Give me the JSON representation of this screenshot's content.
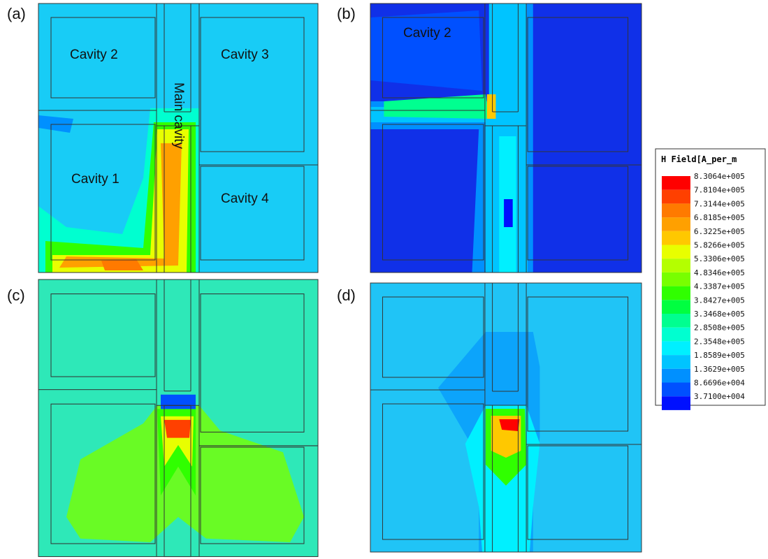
{
  "panels": [
    {
      "label": "(a)",
      "texts": [
        "Cavity 2",
        "Cavity 3",
        "Main cavity",
        "Cavity 1",
        "Cavity 4"
      ]
    },
    {
      "label": "(b)",
      "texts": [
        "Cavity 2"
      ]
    },
    {
      "label": "(c)",
      "texts": []
    },
    {
      "label": "(d)",
      "texts": []
    }
  ],
  "legend": {
    "title": "H Field[A_per_m",
    "entries": [
      {
        "label": "8.3064e+005",
        "color": "#ff0000"
      },
      {
        "label": "7.8104e+005",
        "color": "#ff4000"
      },
      {
        "label": "7.3144e+005",
        "color": "#ff7a00"
      },
      {
        "label": "6.8185e+005",
        "color": "#ffa000"
      },
      {
        "label": "6.3225e+005",
        "color": "#ffc800"
      },
      {
        "label": "5.8266e+005",
        "color": "#e8ff00"
      },
      {
        "label": "5.3306e+005",
        "color": "#b4ff00"
      },
      {
        "label": "4.8346e+005",
        "color": "#78ff00"
      },
      {
        "label": "4.3387e+005",
        "color": "#30ff00"
      },
      {
        "label": "3.8427e+005",
        "color": "#00ff40"
      },
      {
        "label": "3.3468e+005",
        "color": "#00ff90"
      },
      {
        "label": "2.8508e+005",
        "color": "#00ffd0"
      },
      {
        "label": "2.3548e+005",
        "color": "#00f0ff"
      },
      {
        "label": "1.8589e+005",
        "color": "#00c4ff"
      },
      {
        "label": "1.3629e+005",
        "color": "#0090ff"
      },
      {
        "label": "8.6696e+004",
        "color": "#0050ff"
      },
      {
        "label": "3.7100e+004",
        "color": "#0010ff"
      }
    ]
  }
}
